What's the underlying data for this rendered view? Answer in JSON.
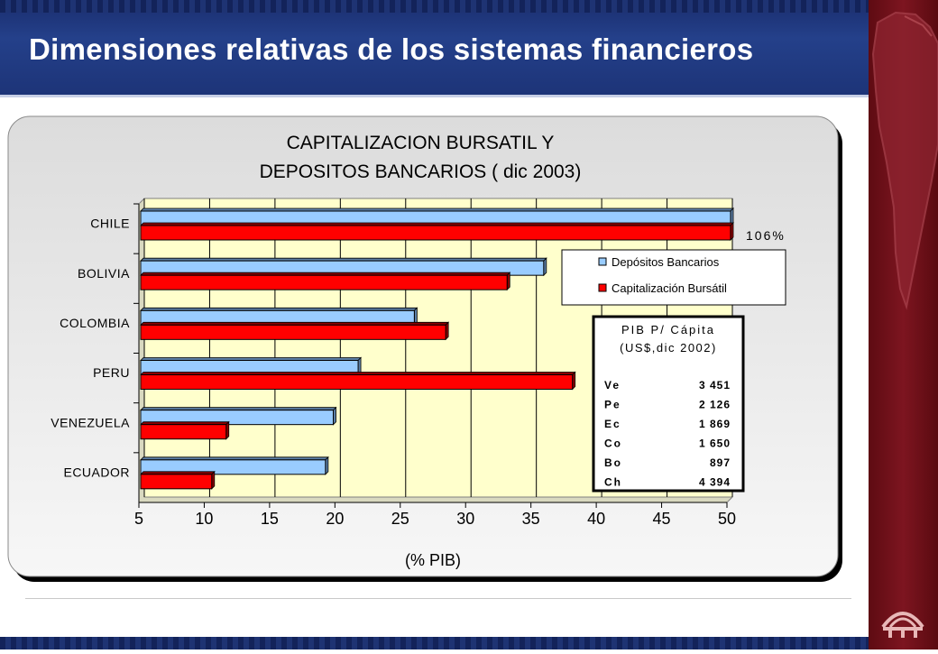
{
  "slide_title": "Dimensiones relativas de los sistemas financieros",
  "chart_data": {
    "type": "bar",
    "orientation": "horizontal",
    "title_line1": "CAPITALIZACION BURSATIL Y",
    "title_line2": "DEPOSITOS BANCARIOS ( dic 2003)",
    "xlabel": "(% PIB)",
    "xlim": [
      5,
      50
    ],
    "xticks": [
      "5",
      "10",
      "15",
      "20",
      "25",
      "30",
      "35",
      "40",
      "45",
      "50"
    ],
    "categories": [
      "CHILE",
      "BOLIVIA",
      "COLOMBIA",
      "PERU",
      "VENEZUELA",
      "ECUADOR"
    ],
    "series": [
      {
        "name": "Depósitos Bancarios",
        "color": "#99ccff",
        "values": [
          50,
          35.7,
          25.8,
          21.5,
          19.6,
          19.0
        ]
      },
      {
        "name": "Capitalización Bursátil",
        "color": "#ff0000",
        "values": [
          50,
          32.9,
          28.2,
          37.9,
          11.4,
          10.3
        ]
      }
    ],
    "annotation": "106%",
    "legend_position": "right",
    "background": "#ffffcc",
    "grid": true,
    "table": {
      "header1": "PIB P/ Cápita",
      "header2": "(US$,dic 2002)",
      "rows": [
        {
          "code": "Ve",
          "value": "3 451"
        },
        {
          "code": "Pe",
          "value": "2 126"
        },
        {
          "code": "Ec",
          "value": "1 869"
        },
        {
          "code": "Co",
          "value": "1 650"
        },
        {
          "code": "Bo",
          "value": "897"
        },
        {
          "code": "Ch",
          "value": "4 394"
        }
      ]
    }
  },
  "colors": {
    "header_blue": "#1d3478",
    "sidebar_red": "#6e1019",
    "plot_bg": "#ffffcc"
  }
}
